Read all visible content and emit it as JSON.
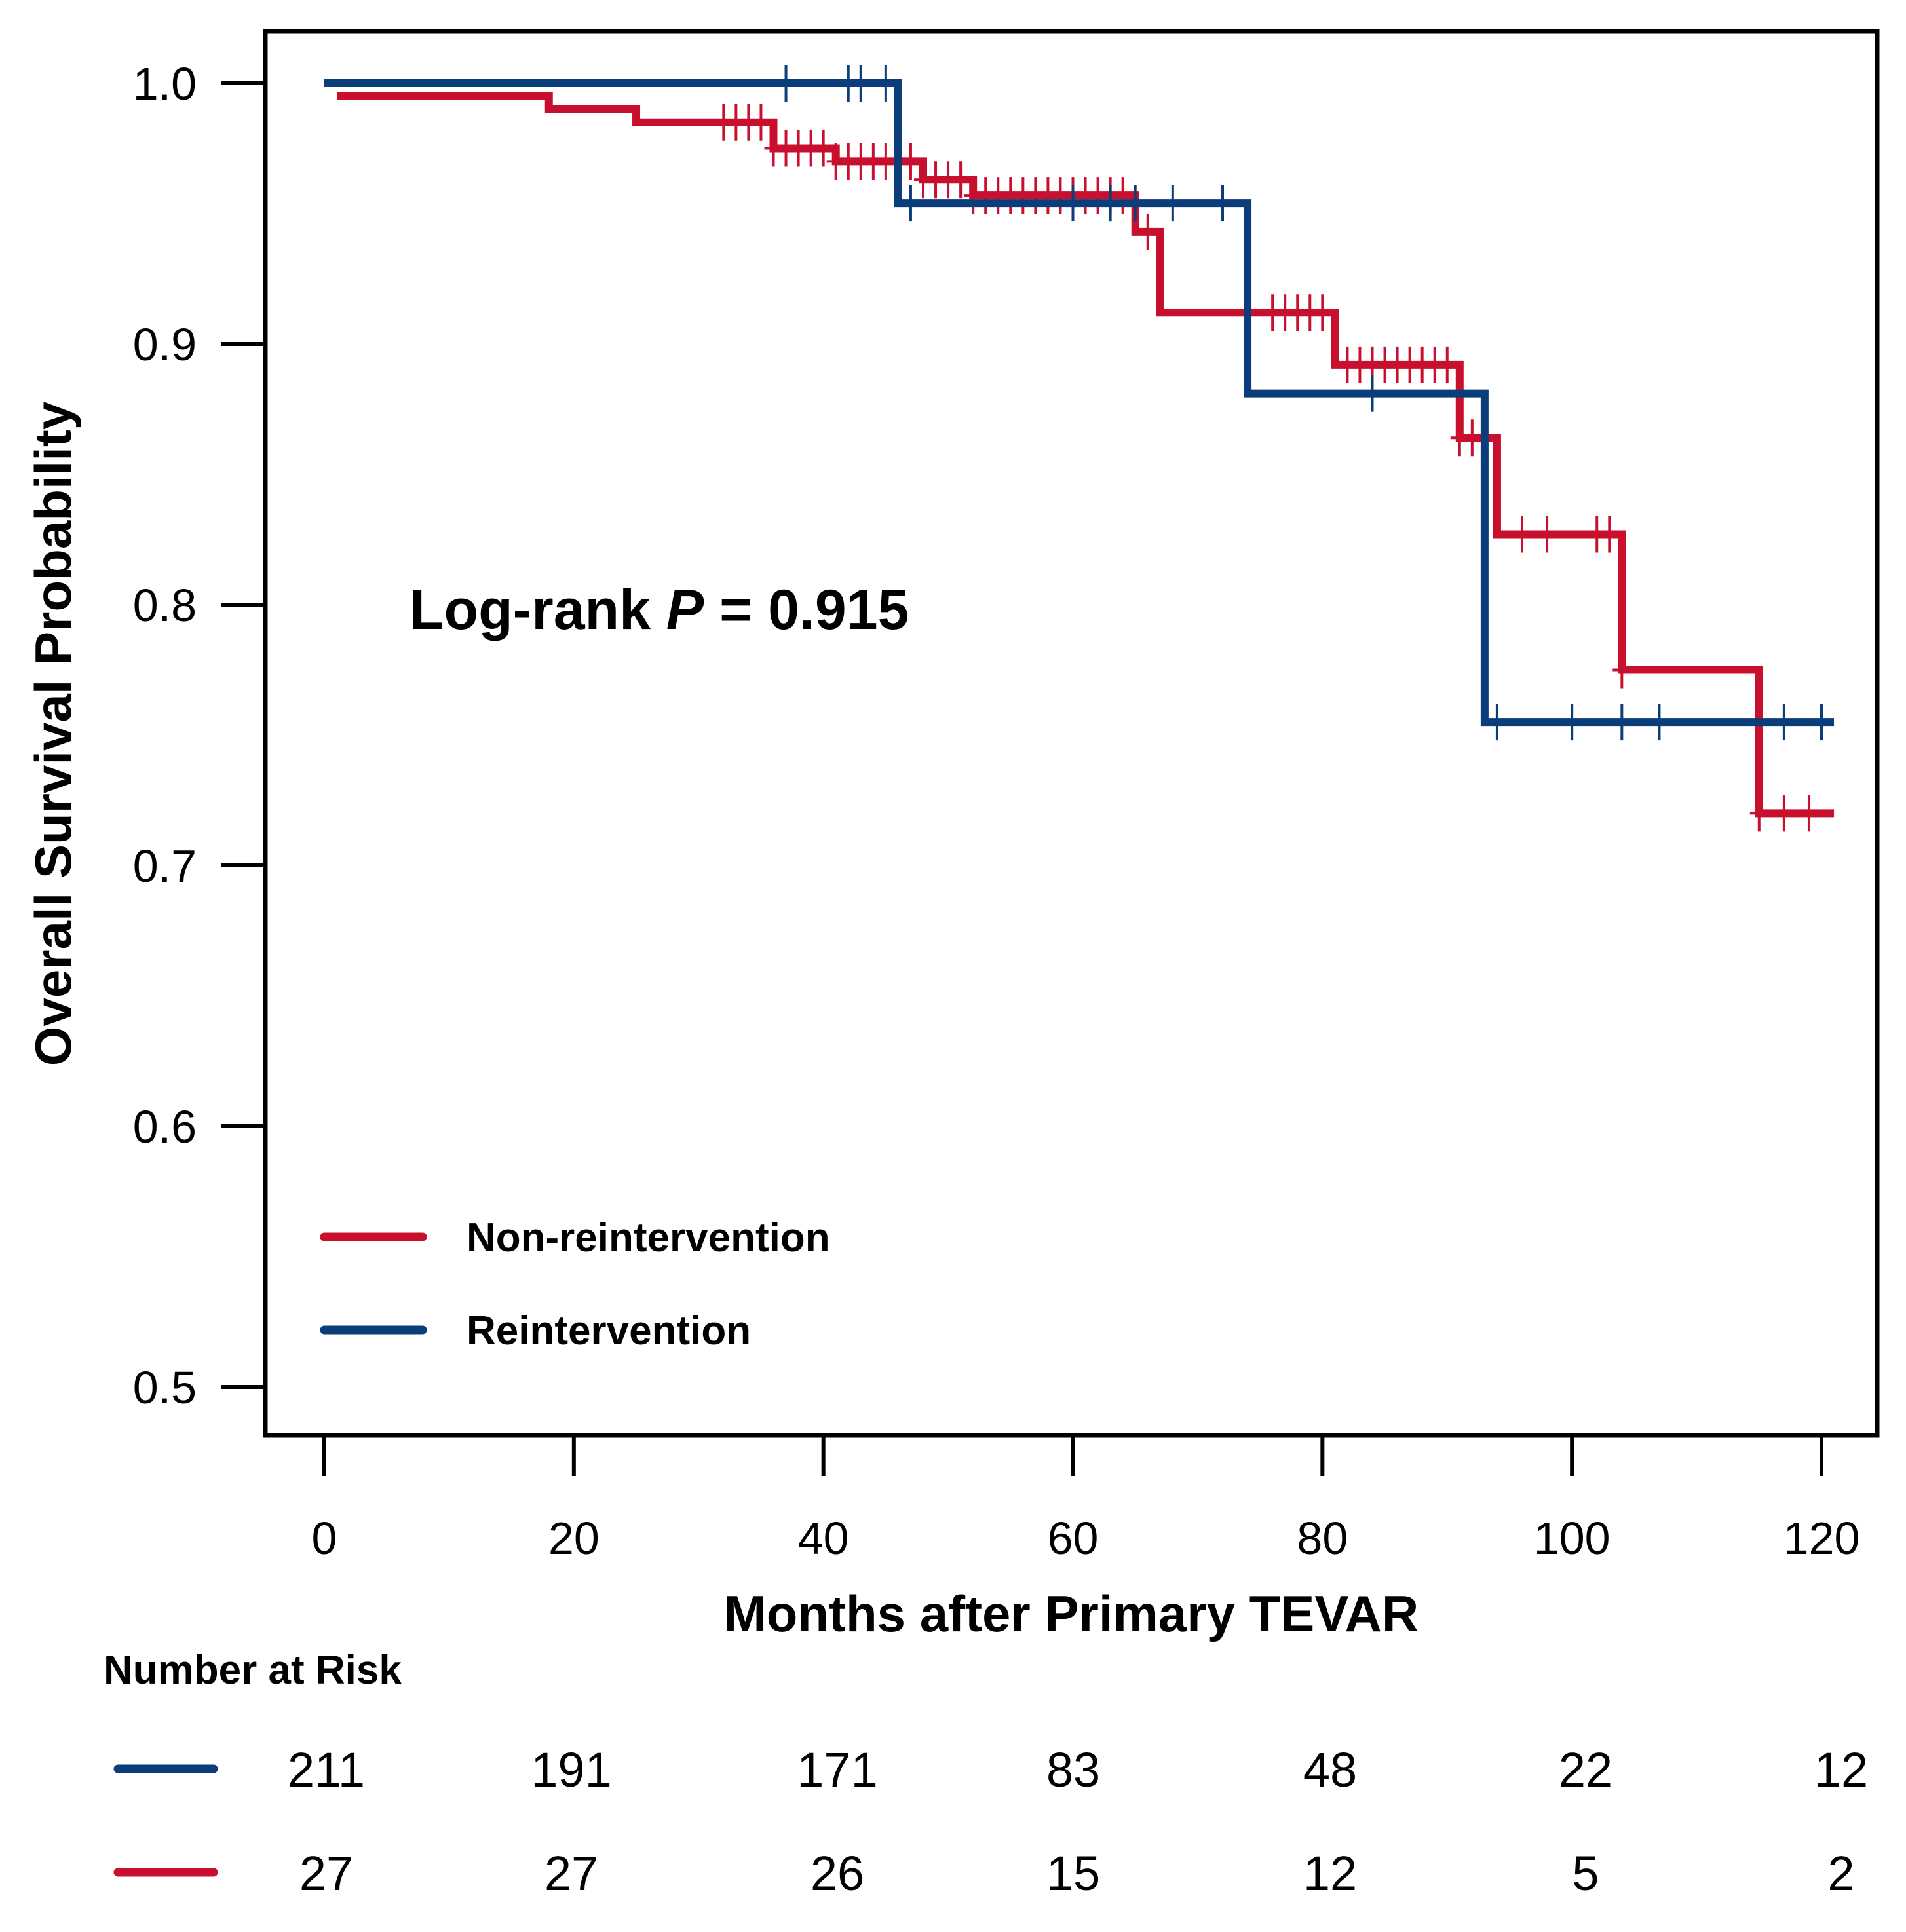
{
  "colors": {
    "non_reintervention": "#c8102e",
    "reintervention": "#0b3d7a",
    "axis": "#000000"
  },
  "chart_data": {
    "type": "line",
    "subtype": "kaplan-meier step",
    "title": "",
    "xlabel": "Months after Primary TEVAR",
    "ylabel": "Overall Survival Probability",
    "xlim": [
      0,
      120
    ],
    "ylim": [
      0.5,
      1.0
    ],
    "xticks": [
      "0",
      "20",
      "40",
      "60",
      "80",
      "100",
      "120"
    ],
    "yticks": [
      "0.5",
      "0.6",
      "0.7",
      "0.8",
      "0.9",
      "1.0"
    ],
    "annotation": {
      "prefix": "Log-rank ",
      "italic": "P",
      "suffix": " = 0.915"
    },
    "legend_position": "bottom-left",
    "series": [
      {
        "name": "Non-reintervention",
        "color": "#c8102e",
        "start_x": 1,
        "end_x": 121,
        "steps": [
          [
            1,
            0.995
          ],
          [
            18,
            0.99
          ],
          [
            25,
            0.985
          ],
          [
            36,
            0.975
          ],
          [
            41,
            0.97
          ],
          [
            48,
            0.963
          ],
          [
            52,
            0.957
          ],
          [
            65,
            0.943
          ],
          [
            67,
            0.912
          ],
          [
            81,
            0.892
          ],
          [
            91,
            0.864
          ],
          [
            94,
            0.827
          ],
          [
            104,
            0.775
          ],
          [
            115,
            0.72
          ]
        ],
        "censor_x": [
          32,
          33,
          34,
          35,
          36,
          37,
          38,
          39,
          40,
          41,
          42,
          43,
          44,
          45,
          46,
          47,
          48,
          49,
          50,
          51,
          52,
          53,
          54,
          55,
          56,
          57,
          58,
          59,
          60,
          61,
          62,
          63,
          64,
          66,
          76,
          77,
          78,
          79,
          80,
          82,
          83,
          84,
          85,
          86,
          87,
          88,
          89,
          90,
          91,
          92,
          96,
          98,
          102,
          103,
          104,
          115,
          117,
          119
        ]
      },
      {
        "name": "Reintervention",
        "color": "#0b3d7a",
        "start_x": 0,
        "end_x": 121,
        "steps": [
          [
            0,
            1.0
          ],
          [
            46,
            0.954
          ],
          [
            74,
            0.881
          ],
          [
            93,
            0.755
          ]
        ],
        "censor_x": [
          37,
          42,
          43,
          45,
          47,
          60,
          63,
          65,
          68,
          72,
          84,
          94,
          100,
          104,
          107,
          117,
          120
        ]
      }
    ],
    "risk_table": {
      "title": "Number at Risk",
      "rows": [
        {
          "name": "Reintervention",
          "color": "#0b3d7a",
          "values": [
            "211",
            "191",
            "171",
            "83",
            "48",
            "22",
            "12"
          ]
        },
        {
          "name": "Non-reintervention",
          "color": "#c8102e",
          "values": [
            "27",
            "27",
            "26",
            "15",
            "12",
            "5",
            "2"
          ]
        }
      ]
    }
  }
}
